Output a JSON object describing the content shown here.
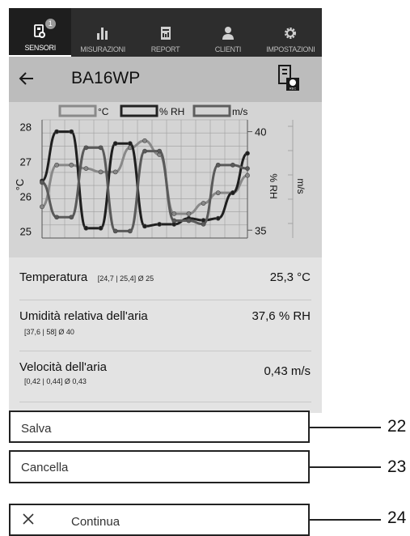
{
  "tabs": [
    {
      "label": "SENSORI",
      "icon": "sensor-icon",
      "badge": "1",
      "active": true
    },
    {
      "label": "MISURAZIONI",
      "icon": "bar-chart-icon",
      "active": false
    },
    {
      "label": "REPORT",
      "icon": "report-icon",
      "active": false
    },
    {
      "label": "CLIENTI",
      "icon": "user-icon",
      "active": false
    },
    {
      "label": "IMPOSTAZIONI",
      "icon": "gear-icon",
      "active": false
    }
  ],
  "header": {
    "title": "BA16WP",
    "back_icon": "arrow-left-icon",
    "rec_icon": "rec-device-icon",
    "rec_label": "REC"
  },
  "chart_data": {
    "type": "line",
    "legend": [
      "°C",
      "% RH",
      "m/s"
    ],
    "left_axis": {
      "label": "°C",
      "ticks": [
        "28",
        "27",
        "26",
        "25"
      ],
      "range": [
        24.8,
        28.2
      ]
    },
    "right_axis_1": {
      "label": "% RH",
      "ticks": [
        "40",
        "35"
      ],
      "range": [
        34.6,
        40.6
      ]
    },
    "right_axis_2": {
      "label": "m/s"
    },
    "series": [
      {
        "name": "°C",
        "axis": "left",
        "values": [
          25.7,
          26.9,
          26.9,
          26.8,
          26.7,
          26.7,
          27.4,
          27.6,
          27.2,
          25.5,
          25.5,
          25.8,
          26.1,
          26.1,
          26.6
        ]
      },
      {
        "name": "% RH",
        "axis": "right",
        "values": [
          37.5,
          40.0,
          40.0,
          35.1,
          35.1,
          39.4,
          39.4,
          35.2,
          35.3,
          35.3,
          35.6,
          35.5,
          35.6,
          36.9,
          38.9
        ]
      },
      {
        "name": "m/s",
        "axis": "left",
        "values": [
          26.4,
          25.4,
          25.4,
          27.4,
          27.4,
          25.0,
          25.0,
          27.3,
          27.3,
          25.3,
          25.3,
          25.2,
          26.9,
          26.9,
          26.8
        ]
      }
    ]
  },
  "readings": [
    {
      "name": "Temperatura",
      "range": "[24,7 | 25,4]  Ø 25",
      "value": "25,3 °C"
    },
    {
      "name": "Umidità relativa dell'aria",
      "range": "[37,6 | 58]  Ø 40",
      "value": "37,6 % RH"
    },
    {
      "name": "Velocità dell'aria",
      "range": "[0,42 | 0,44]  Ø 0,43",
      "value": "0,43 m/s"
    }
  ],
  "actions": {
    "save": {
      "label": "Salva",
      "callout": "22"
    },
    "cancel": {
      "label": "Cancella",
      "callout": "23"
    },
    "continue": {
      "label": "Continua",
      "icon": "close-icon",
      "callout": "24"
    }
  }
}
